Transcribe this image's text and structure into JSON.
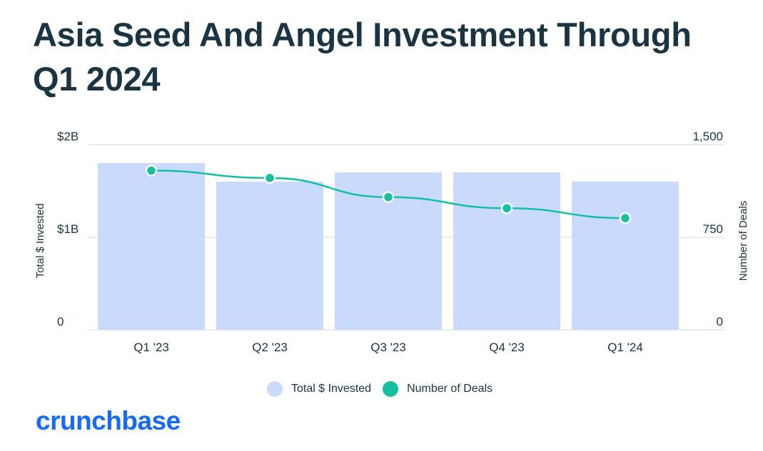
{
  "title": "Asia Seed And Angel Investment Through Q1 2024",
  "brand": "crunchbase",
  "colors": {
    "bar": "#c9dafc",
    "line": "#14c0a1",
    "text": "#1b3444",
    "brand": "#146aff",
    "grid": "#e3e6ea"
  },
  "legend": [
    {
      "label": "Total $ Invested",
      "color": "#c9dafc"
    },
    {
      "label": "Number of Deals",
      "color": "#14c0a1"
    }
  ],
  "chart_data": {
    "type": "bar+line",
    "categories": [
      "Q1 '23",
      "Q2 '23",
      "Q3 '23",
      "Q4 '23",
      "Q1 '24"
    ],
    "series": [
      {
        "name": "Total $ Invested",
        "type": "bar",
        "axis": "left",
        "values": [
          1.8,
          1.6,
          1.7,
          1.7,
          1.6
        ],
        "unit": "$B"
      },
      {
        "name": "Number of Deals",
        "type": "line",
        "axis": "right",
        "values": [
          1290,
          1230,
          1075,
          985,
          905
        ]
      }
    ],
    "y_left": {
      "label": "Total $ Invested",
      "min": 0,
      "max": 2,
      "ticks": [
        {
          "value": 0,
          "label": "0"
        },
        {
          "value": 1,
          "label": "$1B"
        },
        {
          "value": 2,
          "label": "$2B"
        }
      ]
    },
    "y_right": {
      "label": "Number of Deals",
      "min": 0,
      "max": 1500,
      "ticks": [
        {
          "value": 0,
          "label": "0"
        },
        {
          "value": 750,
          "label": "750"
        },
        {
          "value": 1500,
          "label": "1,500"
        }
      ]
    },
    "grid": true,
    "legend_position": "bottom-center"
  }
}
